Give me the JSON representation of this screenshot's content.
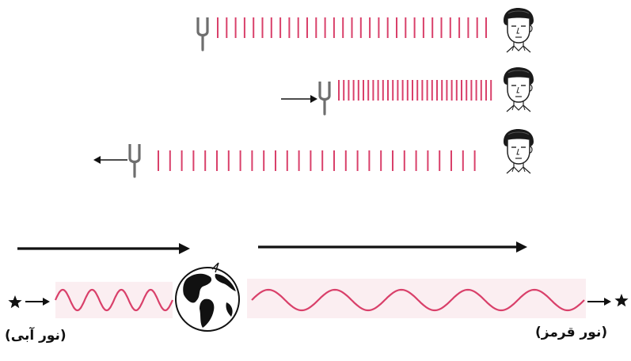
{
  "colors": {
    "wave": "#d9406a",
    "wave_band": "#fbeef1",
    "ink": "#111111",
    "fork": "#6e6e6e"
  },
  "icons": [
    "tuning-fork-icon",
    "listener-face-icon",
    "arrow-icon",
    "star-icon",
    "earth-globe-icon"
  ],
  "labels": {
    "blue_light": "(نور آبی)",
    "red_light": "(نور قرمز)"
  }
}
